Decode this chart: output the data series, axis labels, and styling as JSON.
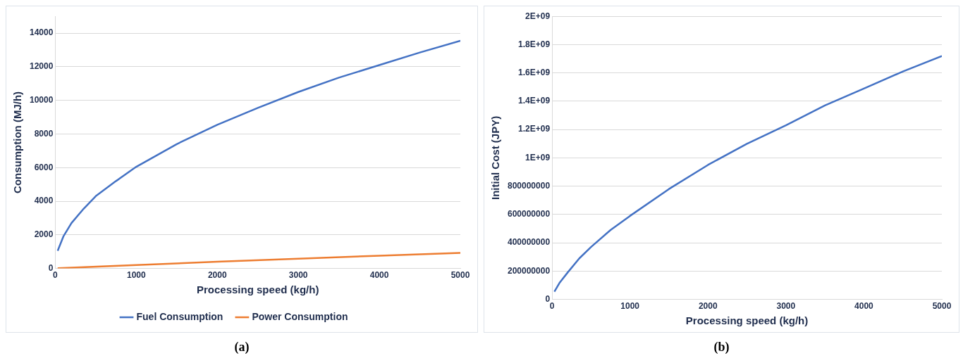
{
  "chart_data": [
    {
      "type": "line",
      "xlabel": "Processing speed (kg/h)",
      "ylabel": "Consumption (MJ/h)",
      "annotations": [
        "(a)"
      ],
      "xlim": [
        0,
        5000
      ],
      "xticks": [
        0,
        1000,
        2000,
        3000,
        4000,
        5000
      ],
      "ylim": [
        0,
        15000
      ],
      "yticks": [
        0,
        2000,
        4000,
        6000,
        8000,
        10000,
        12000,
        14000
      ],
      "grid": "y",
      "legend": "bottom",
      "marker": "none",
      "series": [
        {
          "name": "Fuel Consumption",
          "color": "#4472c4",
          "x": [
            30,
            100,
            200,
            350,
            500,
            750,
            1000,
            1500,
            2000,
            2500,
            3000,
            3500,
            4000,
            4500,
            5000
          ],
          "values": [
            1050,
            1900,
            2700,
            3550,
            4300,
            5200,
            6050,
            7400,
            8550,
            9550,
            10500,
            11350,
            12100,
            12850,
            13550
          ]
        },
        {
          "name": "Power Consumption",
          "color": "#ed7d31",
          "x": [
            30,
            1000,
            2000,
            3000,
            4000,
            5000
          ],
          "values": [
            10,
            200,
            400,
            580,
            760,
            930
          ]
        }
      ]
    },
    {
      "type": "line",
      "xlabel": "Processing speed (kg/h)",
      "ylabel": "Initial Cost (JPY)",
      "annotations": [
        "(b)"
      ],
      "xlim": [
        0,
        5000
      ],
      "xticks": [
        0,
        1000,
        2000,
        3000,
        4000,
        5000
      ],
      "ylim": [
        0,
        2000000000
      ],
      "yticks": [
        0,
        200000000,
        400000000,
        600000000,
        800000000,
        {
          "value": 1000000000,
          "label": "1E+09"
        },
        {
          "value": 1200000000,
          "label": "1.2E+09"
        },
        {
          "value": 1400000000,
          "label": "1.4E+09"
        },
        {
          "value": 1600000000,
          "label": "1.6E+09"
        },
        {
          "value": 1800000000,
          "label": "1.8E+09"
        },
        {
          "value": 2000000000,
          "label": "2E+09"
        }
      ],
      "grid": "y",
      "legend": false,
      "marker": "none",
      "series": [
        {
          "color": "#4472c4",
          "x": [
            30,
            100,
            200,
            350,
            500,
            750,
            1000,
            1500,
            2000,
            2500,
            3000,
            3500,
            4000,
            4500,
            5000
          ],
          "values": [
            55000000,
            120000000,
            190000000,
            290000000,
            370000000,
            490000000,
            590000000,
            780000000,
            950000000,
            1100000000,
            1230000000,
            1370000000,
            1490000000,
            1610000000,
            1720000000
          ]
        }
      ]
    }
  ]
}
